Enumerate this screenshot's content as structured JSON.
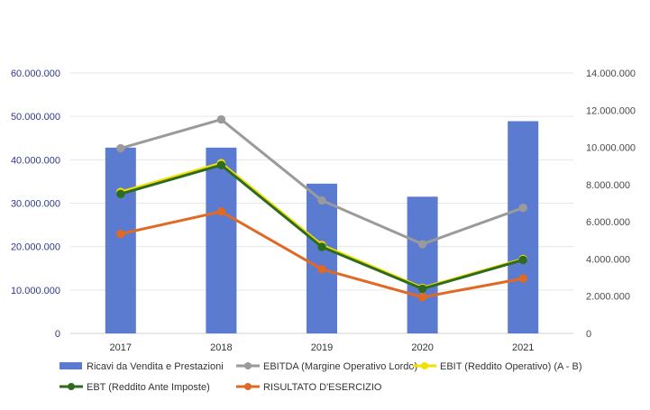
{
  "chart_data": {
    "type": "bar+line",
    "categories": [
      "2017",
      "2018",
      "2019",
      "2020",
      "2021"
    ],
    "y_left": {
      "range": [
        0,
        60000000
      ],
      "ticks": [
        0,
        10000000,
        20000000,
        30000000,
        40000000,
        50000000,
        60000000
      ],
      "tick_labels": [
        "0",
        "10.000.000",
        "20.000.000",
        "30.000.000",
        "40.000.000",
        "50.000.000",
        "60.000.000"
      ]
    },
    "y_right": {
      "range": [
        0,
        14000000
      ],
      "ticks": [
        0,
        2000000,
        4000000,
        6000000,
        8000000,
        10000000,
        12000000,
        14000000
      ],
      "tick_labels": [
        "0",
        "2.000.000",
        "4.000.000",
        "6.000.000",
        "8.000.000",
        "10.000.000",
        "12.000.000",
        "14.000.000"
      ]
    },
    "grid": true,
    "legend_position": "bottom",
    "series": [
      {
        "name": "Ricavi da Vendita e Prestazioni",
        "type": "bar",
        "axis": "left",
        "color": "#5b7bd0",
        "values": [
          42800000,
          42800000,
          34500000,
          31500000,
          48900000
        ]
      },
      {
        "name": "EBITDA (Margine Operativo Lordo)",
        "type": "line",
        "axis": "right",
        "color": "#9a9a9a",
        "values": [
          9950000,
          11500000,
          7150000,
          4800000,
          6750000
        ]
      },
      {
        "name": "EBIT (Reddito Operativo) (A - B)",
        "type": "line",
        "axis": "right",
        "color": "#f2e000",
        "values": [
          7600000,
          9150000,
          4750000,
          2450000,
          4000000
        ]
      },
      {
        "name": "EBT (Reddito Ante Imposte)",
        "type": "line",
        "axis": "right",
        "color": "#2e6b1f",
        "values": [
          7500000,
          9050000,
          4650000,
          2400000,
          3950000
        ]
      },
      {
        "name": "RISULTATO D'ESERCIZIO",
        "type": "line",
        "axis": "right",
        "color": "#e06a25",
        "values": [
          5350000,
          6550000,
          3450000,
          1950000,
          2950000
        ]
      }
    ]
  }
}
